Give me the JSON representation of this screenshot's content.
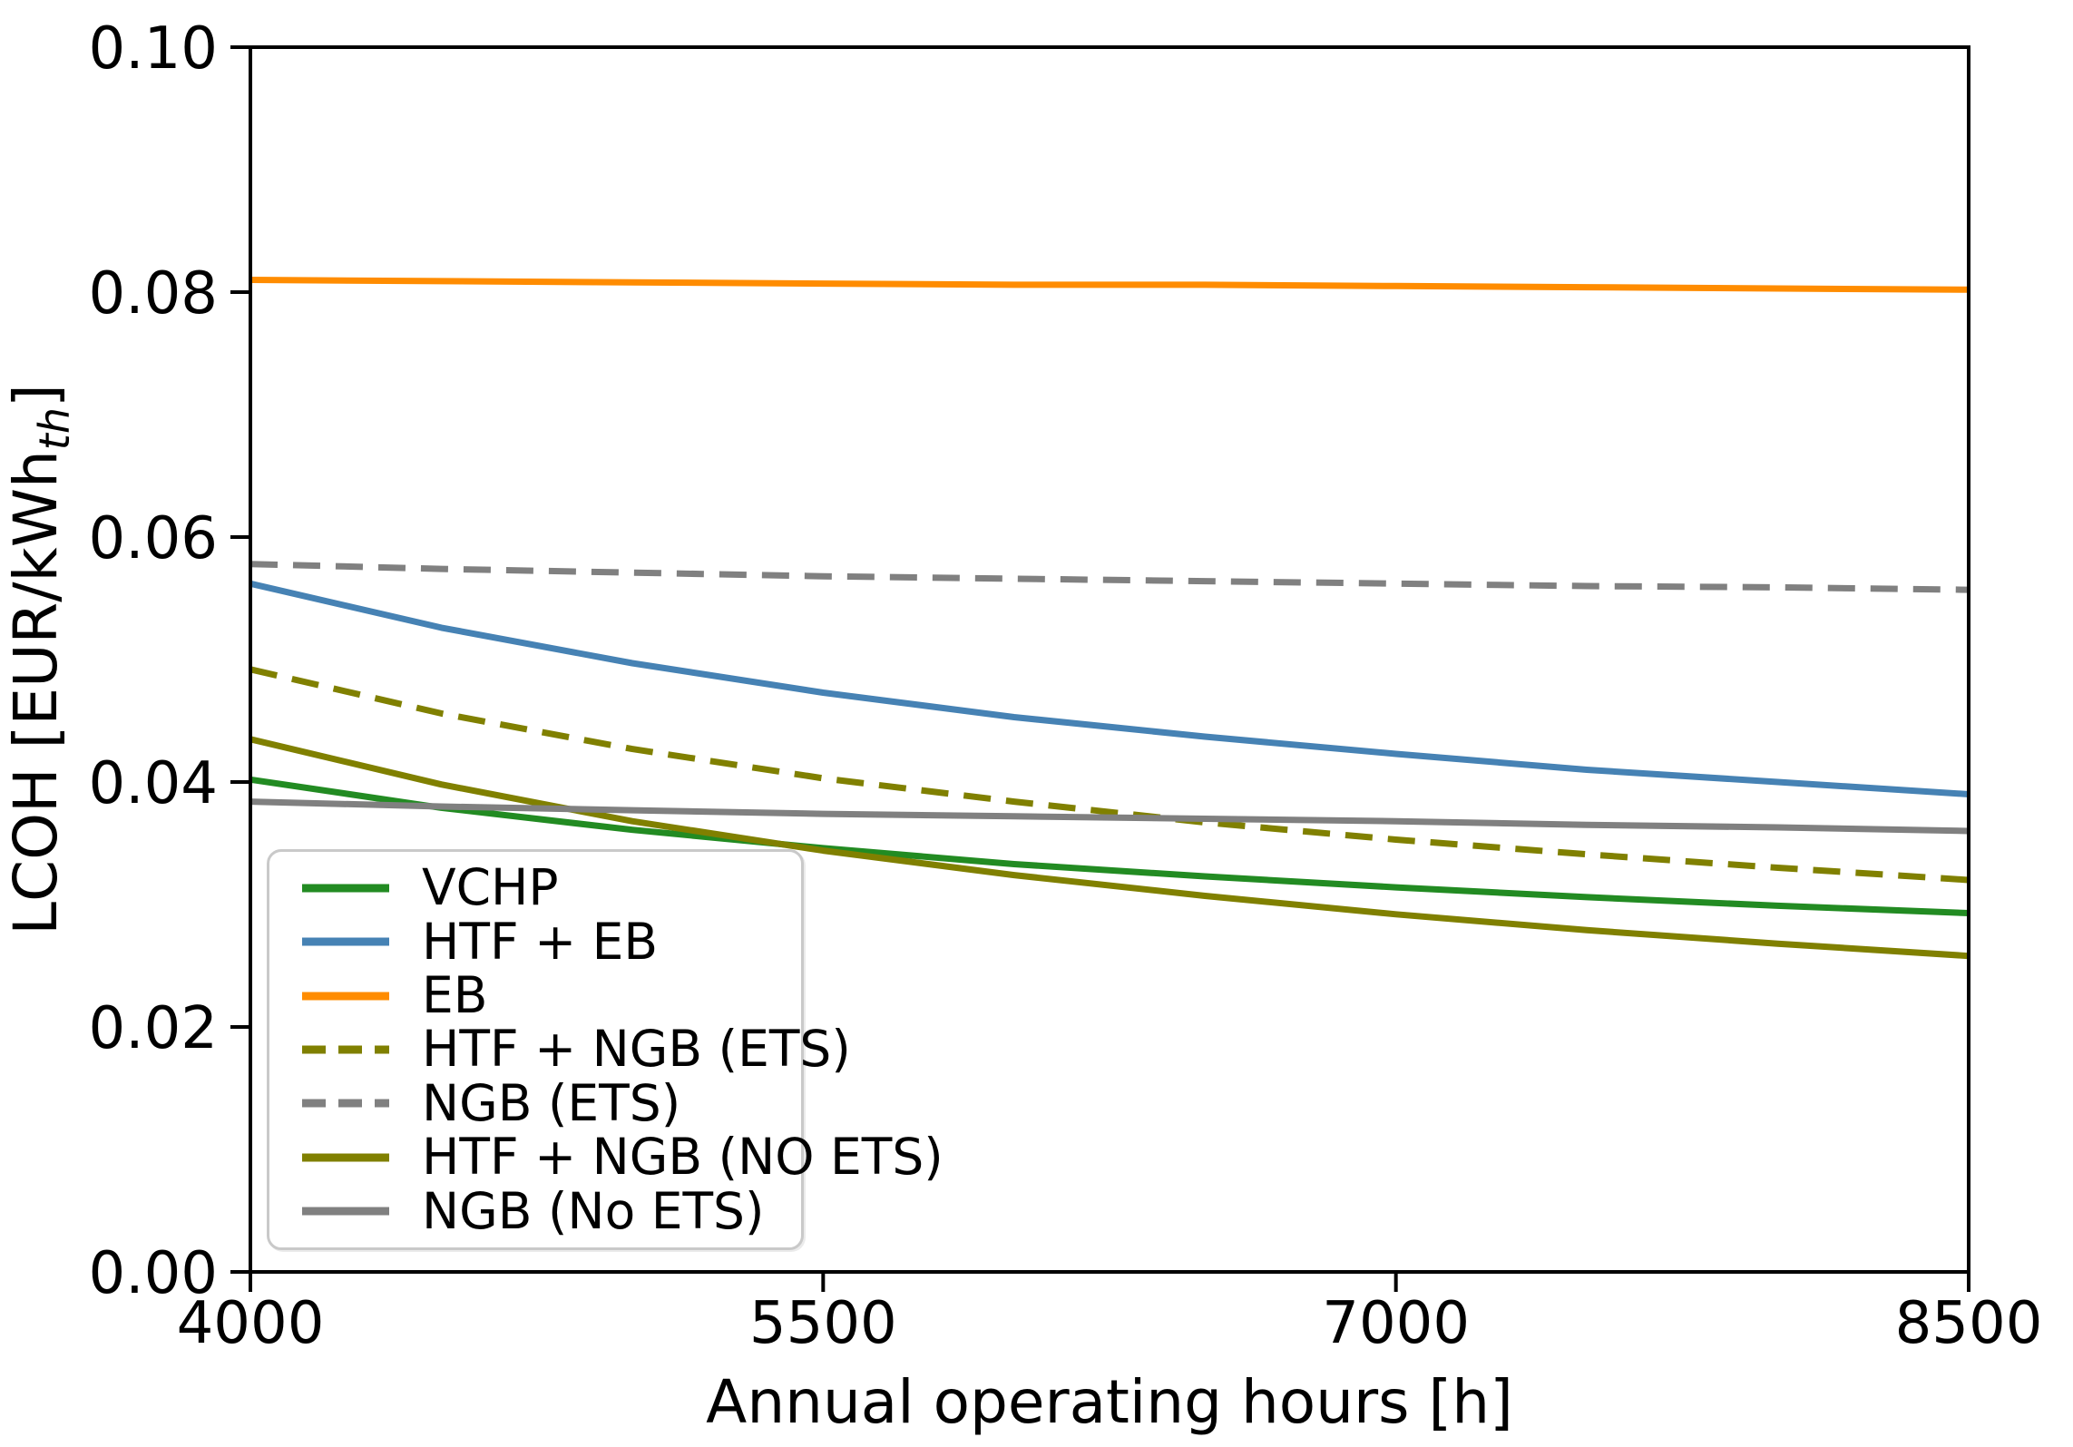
{
  "figure": {
    "background": "#ffffff"
  },
  "chart_data": {
    "type": "line",
    "title": "",
    "xlabel": "Annual operating hours [h]",
    "ylabel": "LCOH [EUR/kWh_th]",
    "ylabel_parts": {
      "main": "LCOH [EUR/kWh",
      "sub": "th",
      "close": "]"
    },
    "xlim": [
      4000,
      8500
    ],
    "ylim": [
      0.0,
      0.1
    ],
    "xticks": [
      4000,
      5500,
      7000,
      8500
    ],
    "yticks": [
      0.0,
      0.02,
      0.04,
      0.06,
      0.08,
      0.1
    ],
    "grid": false,
    "legend_position": "lower left",
    "x": [
      4000,
      4500,
      5000,
      5500,
      6000,
      6500,
      7000,
      7500,
      8000,
      8500
    ],
    "series": [
      {
        "name": "VCHP",
        "color": "#228B22",
        "style": "solid",
        "values": [
          0.0402,
          0.0379,
          0.0361,
          0.0346,
          0.0333,
          0.0323,
          0.0314,
          0.0306,
          0.0299,
          0.0293
        ]
      },
      {
        "name": "HTF + EB",
        "color": "#4682B4",
        "style": "solid",
        "values": [
          0.0562,
          0.0526,
          0.0497,
          0.0473,
          0.0453,
          0.0437,
          0.0423,
          0.041,
          0.04,
          0.039
        ]
      },
      {
        "name": "EB",
        "color": "#FF8C00",
        "style": "solid",
        "values": [
          0.081,
          0.0809,
          0.0808,
          0.0807,
          0.0806,
          0.0806,
          0.0805,
          0.0804,
          0.0803,
          0.0802
        ]
      },
      {
        "name": "HTF + NGB (ETS)",
        "color": "#808000",
        "style": "dashed",
        "values": [
          0.0492,
          0.0456,
          0.0427,
          0.0403,
          0.0384,
          0.0367,
          0.0353,
          0.0341,
          0.033,
          0.032
        ]
      },
      {
        "name": "NGB (ETS)",
        "color": "#808080",
        "style": "dashed",
        "values": [
          0.0578,
          0.0574,
          0.0571,
          0.0568,
          0.0566,
          0.0564,
          0.0562,
          0.056,
          0.0559,
          0.0557
        ]
      },
      {
        "name": "HTF + NGB (NO ETS)",
        "color": "#808000",
        "style": "solid",
        "values": [
          0.0435,
          0.0398,
          0.0368,
          0.0344,
          0.0324,
          0.0307,
          0.0292,
          0.0279,
          0.0268,
          0.0258
        ]
      },
      {
        "name": "NGB (No ETS)",
        "color": "#808080",
        "style": "solid",
        "values": [
          0.0384,
          0.038,
          0.0377,
          0.0374,
          0.0372,
          0.037,
          0.0368,
          0.0365,
          0.0363,
          0.036
        ]
      }
    ]
  }
}
